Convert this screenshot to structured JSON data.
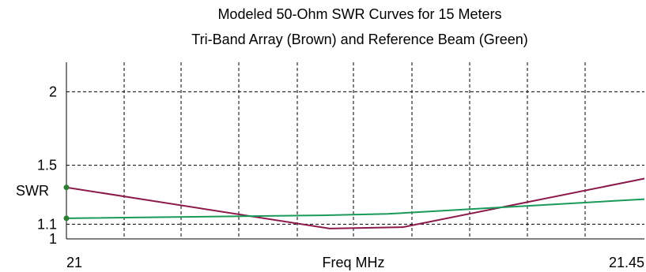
{
  "chart_data": {
    "type": "line",
    "title": "Modeled 50-Ohm SWR Curves for 15 Meters",
    "subtitle": "Tri-Band Array (Brown) and Reference Beam (Green)",
    "xlabel": "Freq MHz",
    "ylabel": "SWR",
    "xlim": [
      21,
      21.45
    ],
    "ylim": [
      1,
      2.2
    ],
    "grid": true,
    "x_tick_labels": [
      "21",
      "21.45"
    ],
    "y_ticks": [
      2,
      1.5,
      1.1,
      1
    ],
    "y_tick_labels": [
      "2",
      "1.5",
      "1.1",
      "1"
    ],
    "series": [
      {
        "color": "#8b1a4a",
        "x": [
          21.0,
          21.205,
          21.262,
          21.45
        ],
        "y": [
          1.35,
          1.07,
          1.08,
          1.41
        ],
        "marker_at_start": true
      },
      {
        "color": "#1a9a5a",
        "x": [
          21.0,
          21.2,
          21.25,
          21.45
        ],
        "y": [
          1.14,
          1.16,
          1.17,
          1.27
        ],
        "marker_at_start": true
      }
    ]
  }
}
